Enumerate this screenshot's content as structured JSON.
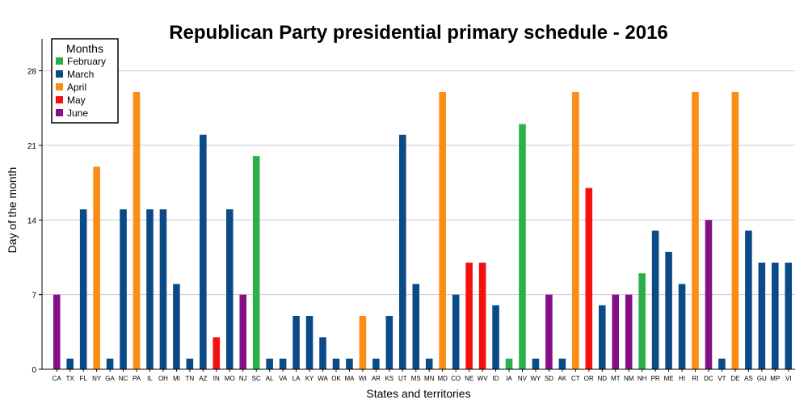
{
  "chart_data": {
    "type": "bar",
    "title": "Republican Party presidential primary schedule - 2016",
    "xlabel": "States and territories",
    "ylabel": "Day of the month",
    "ylim": [
      0,
      31
    ],
    "yticks": [
      0,
      7,
      14,
      21,
      28
    ],
    "grid": true,
    "legend": {
      "title": "Months",
      "placement": "top-left",
      "entries": [
        {
          "name": "February",
          "color": "#2ab04a"
        },
        {
          "name": "March",
          "color": "#0a4a87"
        },
        {
          "name": "April",
          "color": "#fb8c14"
        },
        {
          "name": "May",
          "color": "#f50f0f"
        },
        {
          "name": "June",
          "color": "#860f86"
        }
      ]
    },
    "categories": [
      "CA",
      "TX",
      "FL",
      "NY",
      "GA",
      "NC",
      "PA",
      "IL",
      "OH",
      "MI",
      "TN",
      "AZ",
      "IN",
      "MO",
      "NJ",
      "SC",
      "AL",
      "VA",
      "LA",
      "KY",
      "WA",
      "OK",
      "MA",
      "WI",
      "AR",
      "KS",
      "UT",
      "MS",
      "MN",
      "MD",
      "CO",
      "NE",
      "WV",
      "ID",
      "IA",
      "NV",
      "WY",
      "SD",
      "AK",
      "CT",
      "OR",
      "ND",
      "MT",
      "NM",
      "NH",
      "PR",
      "ME",
      "HI",
      "RI",
      "DC",
      "VT",
      "DE",
      "AS",
      "GU",
      "MP",
      "VI"
    ],
    "values": [
      7,
      1,
      15,
      19,
      1,
      15,
      26,
      15,
      15,
      8,
      1,
      22,
      3,
      15,
      7,
      20,
      1,
      1,
      5,
      5,
      3,
      1,
      1,
      5,
      1,
      5,
      22,
      8,
      1,
      26,
      7,
      10,
      10,
      6,
      1,
      23,
      1,
      7,
      1,
      26,
      17,
      6,
      7,
      7,
      9,
      13,
      11,
      8,
      26,
      14,
      1,
      26,
      13,
      10,
      10,
      10
    ],
    "months": [
      "June",
      "March",
      "March",
      "April",
      "March",
      "March",
      "April",
      "March",
      "March",
      "March",
      "March",
      "March",
      "May",
      "March",
      "June",
      "February",
      "March",
      "March",
      "March",
      "March",
      "March",
      "March",
      "March",
      "April",
      "March",
      "March",
      "March",
      "March",
      "March",
      "April",
      "March",
      "May",
      "May",
      "March",
      "February",
      "February",
      "March",
      "June",
      "March",
      "April",
      "May",
      "March",
      "June",
      "June",
      "February",
      "March",
      "March",
      "March",
      "April",
      "June",
      "March",
      "April",
      "March",
      "March",
      "March",
      "March"
    ]
  }
}
